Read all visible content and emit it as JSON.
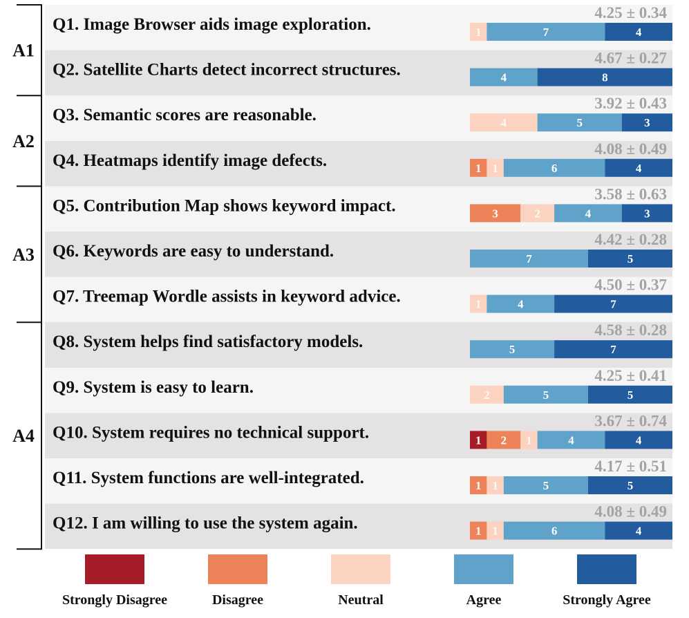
{
  "chart_data": {
    "type": "bar",
    "stacked": true,
    "orientation": "horizontal",
    "legend": {
      "placement": "bottom",
      "items": [
        {
          "name": "Strongly Disagree",
          "color": "#A61C27"
        },
        {
          "name": "Disagree",
          "color": "#EE8258"
        },
        {
          "name": "Neutral",
          "color": "#FBD3C0"
        },
        {
          "name": "Agree",
          "color": "#5FA2CA"
        },
        {
          "name": "Strongly Agree",
          "color": "#235B9F"
        }
      ]
    },
    "groups": [
      {
        "label": "A1",
        "questions": [
          0,
          1
        ]
      },
      {
        "label": "A2",
        "questions": [
          2,
          3
        ]
      },
      {
        "label": "A3",
        "questions": [
          4,
          5,
          6
        ]
      },
      {
        "label": "A4",
        "questions": [
          7,
          8,
          9,
          10,
          11
        ]
      }
    ],
    "questions": [
      {
        "text": "Q1. Image Browser aids image exploration.",
        "stat": "4.25 ± 0.34",
        "counts": [
          0,
          0,
          1,
          7,
          4
        ]
      },
      {
        "text": "Q2. Satellite Charts detect incorrect structures.",
        "stat": "4.67 ± 0.27",
        "counts": [
          0,
          0,
          0,
          4,
          8
        ]
      },
      {
        "text": "Q3. Semantic scores are reasonable.",
        "stat": "3.92 ± 0.43",
        "counts": [
          0,
          0,
          4,
          5,
          3
        ]
      },
      {
        "text": "Q4. Heatmaps identify image defects.",
        "stat": "4.08 ± 0.49",
        "counts": [
          0,
          1,
          1,
          6,
          4
        ]
      },
      {
        "text": "Q5. Contribution Map shows keyword impact.",
        "stat": "3.58 ± 0.63",
        "counts": [
          0,
          3,
          2,
          4,
          3
        ]
      },
      {
        "text": "Q6. Keywords are easy to understand.",
        "stat": "4.42 ± 0.28",
        "counts": [
          0,
          0,
          0,
          7,
          5
        ]
      },
      {
        "text": "Q7. Treemap Wordle assists in keyword advice.",
        "stat": "4.50 ± 0.37",
        "counts": [
          0,
          0,
          1,
          4,
          7
        ]
      },
      {
        "text": "Q8. System helps find satisfactory models.",
        "stat": "4.58 ± 0.28",
        "counts": [
          0,
          0,
          0,
          5,
          7
        ]
      },
      {
        "text": "Q9. System is easy to learn.",
        "stat": "4.25 ± 0.41",
        "counts": [
          0,
          0,
          2,
          5,
          5
        ]
      },
      {
        "text": "Q10. System requires no technical support.",
        "stat": "3.67 ± 0.74",
        "counts": [
          1,
          2,
          1,
          4,
          4
        ]
      },
      {
        "text": "Q11. System functions are well-integrated.",
        "stat": "4.17 ± 0.51",
        "counts": [
          0,
          1,
          1,
          5,
          5
        ]
      },
      {
        "text": "Q12. I am willing to use the system again.",
        "stat": "4.08 ± 0.49",
        "counts": [
          0,
          1,
          1,
          6,
          4
        ]
      }
    ]
  }
}
